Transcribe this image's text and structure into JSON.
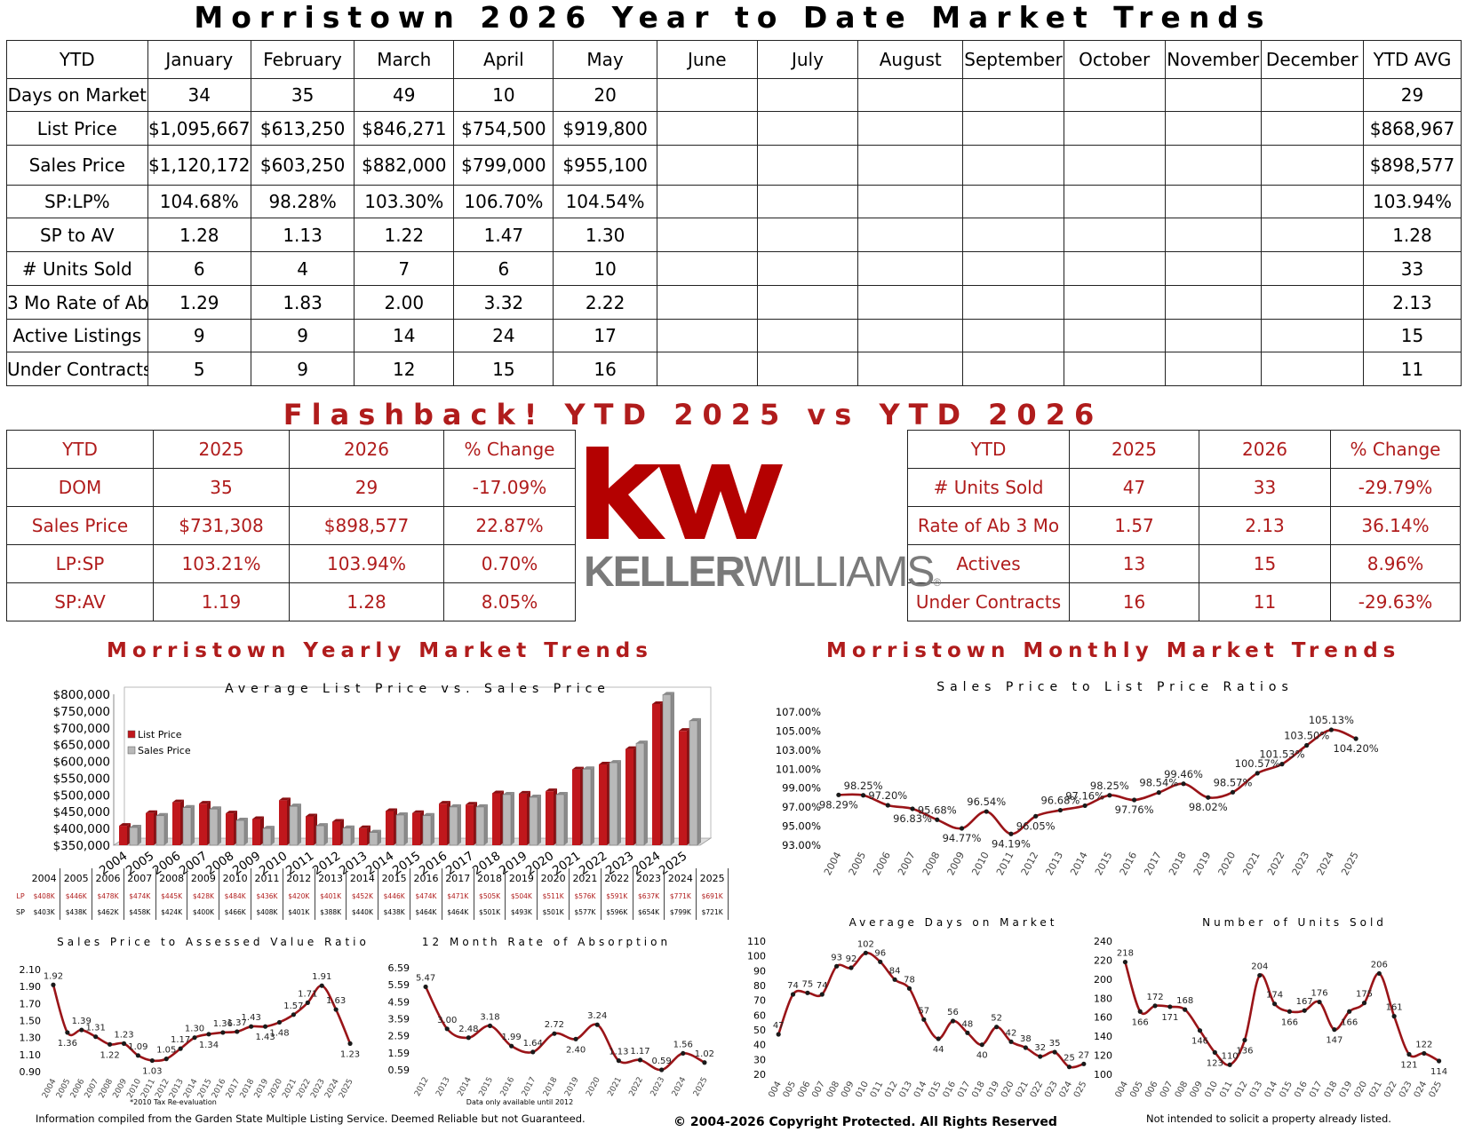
{
  "main_title": "Morristown 2026 Year to Date Market Trends",
  "ytd_table": {
    "headers": [
      "YTD",
      "January",
      "February",
      "March",
      "April",
      "May",
      "June",
      "July",
      "August",
      "September",
      "October",
      "November",
      "December",
      "YTD AVG"
    ],
    "rows": [
      {
        "label": "Days on Market",
        "values": [
          "34",
          "35",
          "49",
          "10",
          "20",
          "",
          "",
          "",
          "",
          "",
          "",
          ""
        ],
        "avg": "29"
      },
      {
        "label": "List Price",
        "values": [
          "$1,095,667",
          "$613,250",
          "$846,271",
          "$754,500",
          "$919,800",
          "",
          "",
          "",
          "",
          "",
          "",
          ""
        ],
        "avg": "$868,967"
      },
      {
        "label": "Sales Price",
        "values": [
          "$1,120,172",
          "$603,250",
          "$882,000",
          "$799,000",
          "$955,100",
          "",
          "",
          "",
          "",
          "",
          "",
          ""
        ],
        "avg": "$898,577"
      },
      {
        "label": "SP:LP%",
        "values": [
          "104.68%",
          "98.28%",
          "103.30%",
          "106.70%",
          "104.54%",
          "",
          "",
          "",
          "",
          "",
          "",
          ""
        ],
        "avg": "103.94%"
      },
      {
        "label": "SP to AV",
        "values": [
          "1.28",
          "1.13",
          "1.22",
          "1.47",
          "1.30",
          "",
          "",
          "",
          "",
          "",
          "",
          ""
        ],
        "avg": "1.28"
      },
      {
        "label": "# Units Sold",
        "values": [
          "6",
          "4",
          "7",
          "6",
          "10",
          "",
          "",
          "",
          "",
          "",
          "",
          ""
        ],
        "avg": "33"
      },
      {
        "label": "3 Mo Rate of Ab",
        "values": [
          "1.29",
          "1.83",
          "2.00",
          "3.32",
          "2.22",
          "",
          "",
          "",
          "",
          "",
          "",
          ""
        ],
        "avg": "2.13"
      },
      {
        "label": "Active Listings",
        "values": [
          "9",
          "9",
          "14",
          "24",
          "17",
          "",
          "",
          "",
          "",
          "",
          "",
          ""
        ],
        "avg": "15"
      },
      {
        "label": "Under Contracts",
        "values": [
          "5",
          "9",
          "12",
          "15",
          "16",
          "",
          "",
          "",
          "",
          "",
          "",
          ""
        ],
        "avg": "11"
      }
    ]
  },
  "flashback_title": "Flashback!  YTD 2025 vs YTD 2026",
  "flash_left": {
    "headers": [
      "YTD",
      "2025",
      "2026",
      "% Change"
    ],
    "rows": [
      [
        "DOM",
        "35",
        "29",
        "-17.09%"
      ],
      [
        "Sales Price",
        "$731,308",
        "$898,577",
        "22.87%"
      ],
      [
        "LP:SP",
        "103.21%",
        "103.94%",
        "0.70%"
      ],
      [
        "SP:AV",
        "1.19",
        "1.28",
        "8.05%"
      ]
    ]
  },
  "flash_right": {
    "headers": [
      "YTD",
      "2025",
      "2026",
      "% Change"
    ],
    "rows": [
      [
        "# Units Sold",
        "47",
        "33",
        "-29.79%"
      ],
      [
        "Rate of Ab 3 Mo",
        "1.57",
        "2.13",
        "36.14%"
      ],
      [
        "Actives",
        "13",
        "15",
        "8.96%"
      ],
      [
        "Under Contracts",
        "16",
        "11",
        "-29.63%"
      ]
    ]
  },
  "logo": {
    "wordmark_left": "KELLER",
    "wordmark_right": "WILLIAMS",
    "registered": "®",
    "colors": {
      "red": "#b40101",
      "gray": "#7a7a7a"
    }
  },
  "yearly_title": "Morristown Yearly Market Trends",
  "monthly_title": "Morristown Monthly Market Trends",
  "table_row_labels": {
    "lp": "LP",
    "sp": "SP"
  },
  "footer": {
    "left": "Information compiled from the Garden State Multiple Listing Service.  Deemed Reliable but not Guaranteed.",
    "center": "© 2004-2026 Copyright Protected.  All Rights Reserved",
    "right": "Not intended to solicit a property already listed."
  },
  "chart_data": [
    {
      "type": "bar",
      "title": "Average List Price vs. Sales Price",
      "categories": [
        "2004",
        "2005",
        "2006",
        "2007",
        "2008",
        "2009",
        "2010",
        "2011",
        "2012",
        "2013",
        "2014",
        "2015",
        "2016",
        "2017",
        "2018",
        "2019",
        "2020",
        "2021",
        "2022",
        "2023",
        "2024",
        "2025"
      ],
      "series": [
        {
          "name": "List Price",
          "color": "#c0171c",
          "values": [
            408,
            446,
            478,
            474,
            445,
            428,
            484,
            436,
            420,
            401,
            452,
            446,
            474,
            471,
            505,
            504,
            511,
            576,
            591,
            637,
            771,
            691
          ],
          "labels": [
            "$408K",
            "$446K",
            "$478K",
            "$474K",
            "$445K",
            "$428K",
            "$484K",
            "$436K",
            "$420K",
            "$401K",
            "$452K",
            "$446K",
            "$474K",
            "$471K",
            "$505K",
            "$504K",
            "$511K",
            "$576K",
            "$591K",
            "$637K",
            "$771K",
            "$691K"
          ]
        },
        {
          "name": "Sales Price",
          "color": "#b9b9b9",
          "values": [
            403,
            438,
            462,
            458,
            424,
            400,
            466,
            408,
            401,
            388,
            440,
            438,
            464,
            464,
            501,
            493,
            501,
            577,
            596,
            654,
            799,
            721
          ],
          "labels": [
            "$403K",
            "$438K",
            "$462K",
            "$458K",
            "$424K",
            "$400K",
            "$466K",
            "$408K",
            "$401K",
            "$388K",
            "$440K",
            "$438K",
            "$464K",
            "$464K",
            "$501K",
            "$493K",
            "$501K",
            "$577K",
            "$596K",
            "$654K",
            "$799K",
            "$721K"
          ]
        }
      ],
      "ylim": [
        350000,
        800000
      ],
      "yticks": [
        "$350,000",
        "$400,000",
        "$450,000",
        "$500,000",
        "$550,000",
        "$600,000",
        "$650,000",
        "$700,000",
        "$750,000",
        "$800,000"
      ],
      "legend": "left"
    },
    {
      "type": "line",
      "title": "Sales Price to List Price Ratios",
      "x": [
        "2004",
        "2005",
        "2006",
        "2007",
        "2008",
        "2009",
        "2010",
        "2011",
        "2012",
        "2013",
        "2014",
        "2015",
        "2016",
        "2017",
        "2018",
        "2019",
        "2020",
        "2021",
        "2022",
        "2023",
        "2024",
        "2025"
      ],
      "values": [
        98.29,
        98.25,
        97.2,
        96.83,
        95.68,
        94.77,
        96.54,
        94.19,
        96.05,
        96.68,
        97.16,
        98.25,
        97.76,
        98.54,
        99.46,
        98.02,
        98.57,
        100.57,
        101.53,
        103.5,
        105.13,
        104.2
      ],
      "labels": [
        "98.29%",
        "98.25%",
        "97.20%",
        "96.83%",
        "95.68%",
        "94.77%",
        "96.54%",
        "94.19%",
        "96.05%",
        "96.68%",
        "97.16%",
        "98.25%",
        "97.76%",
        "98.54%",
        "99.46%",
        "98.02%",
        "98.57%",
        "100.57%",
        "101.53%",
        "103.50%",
        "105.13%",
        "104.20%"
      ],
      "ylim": [
        93,
        107
      ],
      "yticks": [
        "93.00%",
        "95.00%",
        "97.00%",
        "99.00%",
        "101.00%",
        "103.00%",
        "105.00%",
        "107.00%"
      ]
    },
    {
      "type": "line",
      "title": "Sales Price to Assessed Value Ratio",
      "x": [
        "2004",
        "2005",
        "2006",
        "2007",
        "2008",
        "2009",
        "2010",
        "2011",
        "2012",
        "2013",
        "2014",
        "2015",
        "2016",
        "2017",
        "2018",
        "2019",
        "2020",
        "2021",
        "2022",
        "2023",
        "2024",
        "2025"
      ],
      "values": [
        1.92,
        1.36,
        1.39,
        1.31,
        1.22,
        1.23,
        1.09,
        1.03,
        1.05,
        1.17,
        1.3,
        1.34,
        1.36,
        1.37,
        1.43,
        1.43,
        1.48,
        1.57,
        1.71,
        1.91,
        1.63,
        1.23
      ],
      "labels": [
        "1.92",
        "1.36",
        "1.39",
        "1.31",
        "1.22",
        "1.23",
        "1.09",
        "1.03",
        "1.05",
        "1.17",
        "1.30",
        "1.34",
        "1.36",
        "1.37",
        "1.43",
        "1.43",
        "1.48",
        "1.57",
        "1.71",
        "1.91",
        "1.63",
        "1.23"
      ],
      "ylim": [
        0.9,
        2.1
      ],
      "yticks": [
        "0.90",
        "1.10",
        "1.30",
        "1.50",
        "1.70",
        "1.90",
        "2.10"
      ],
      "note": "*2010 Tax Re-evaluation"
    },
    {
      "type": "line",
      "title": "12 Month Rate of Absorption",
      "x": [
        "2012",
        "2013",
        "2014",
        "2015",
        "2016",
        "2017",
        "2018",
        "2019",
        "2020",
        "2021",
        "2022",
        "2023",
        "2024",
        "2025"
      ],
      "values": [
        5.47,
        3.0,
        2.48,
        3.18,
        1.99,
        1.64,
        2.72,
        2.4,
        3.24,
        1.13,
        1.17,
        0.59,
        1.56,
        1.02
      ],
      "labels": [
        "5.47",
        "3.00",
        "2.48",
        "3.18",
        "1.99",
        "1.64",
        "2.72",
        "2.40",
        "3.24",
        "1.13",
        "1.17",
        "0.59",
        "1.56",
        "1.02"
      ],
      "ylim": [
        0.59,
        6.59
      ],
      "yticks": [
        "0.59",
        "1.59",
        "2.59",
        "3.59",
        "4.59",
        "5.59",
        "6.59"
      ],
      "note": "Data only available until 2012"
    },
    {
      "type": "line",
      "title": "Average Days on Market",
      "x": [
        "2004",
        "2005",
        "2006",
        "2007",
        "2008",
        "2009",
        "2010",
        "2011",
        "2012",
        "2013",
        "2014",
        "2015",
        "2016",
        "2017",
        "2018",
        "2019",
        "2020",
        "2021",
        "2022",
        "2023",
        "2024",
        "2025"
      ],
      "values": [
        47,
        74,
        75,
        74,
        93,
        92,
        102,
        96,
        84,
        78,
        57,
        44,
        56,
        48,
        40,
        52,
        42,
        38,
        32,
        35,
        25,
        27
      ],
      "labels": [
        "47",
        "74",
        "75",
        "74",
        "93",
        "92",
        "102",
        "96",
        "84",
        "78",
        "57",
        "44",
        "56",
        "48",
        "40",
        "52",
        "42",
        "38",
        "32",
        "35",
        "25",
        "27"
      ],
      "ylim": [
        20,
        110
      ],
      "yticks": [
        "20",
        "30",
        "40",
        "50",
        "60",
        "70",
        "80",
        "90",
        "100",
        "110"
      ]
    },
    {
      "type": "line",
      "title": "Number of Units Sold",
      "x": [
        "2004",
        "2005",
        "2006",
        "2007",
        "2008",
        "2009",
        "2010",
        "2011",
        "2012",
        "2013",
        "2014",
        "2015",
        "2016",
        "2017",
        "2018",
        "2019",
        "2020",
        "2021",
        "2022",
        "2023",
        "2024",
        "2025"
      ],
      "values": [
        218,
        166,
        172,
        171,
        168,
        146,
        123,
        110,
        136,
        204,
        174,
        166,
        167,
        176,
        147,
        166,
        175,
        206,
        161,
        121,
        122,
        114
      ],
      "labels": [
        "218",
        "166",
        "172",
        "171",
        "168",
        "146",
        "123",
        "110",
        "136",
        "204",
        "174",
        "166",
        "167",
        "176",
        "147",
        "166",
        "175",
        "206",
        "161",
        "121",
        "122",
        "114"
      ],
      "ylim": [
        100,
        240
      ],
      "yticks": [
        "100",
        "120",
        "140",
        "160",
        "180",
        "200",
        "220",
        "240"
      ]
    }
  ]
}
